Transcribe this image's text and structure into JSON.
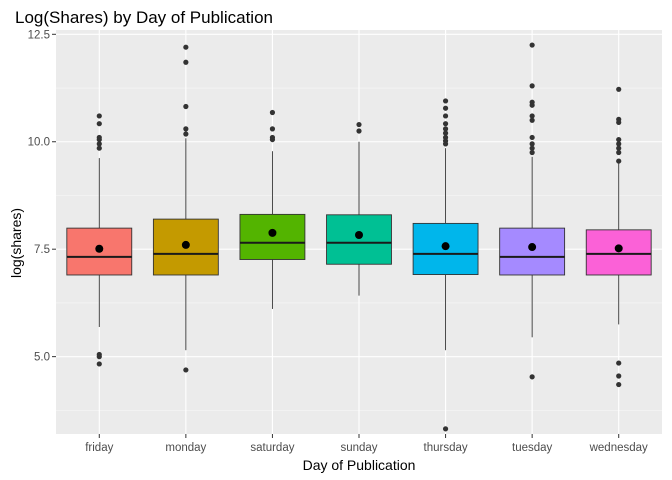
{
  "chart_data": {
    "type": "boxplot",
    "title": "Log(Shares) by Day of Publication",
    "xlabel": "Day of Publication",
    "ylabel": "log(shares)",
    "ylim": [
      3.2,
      12.6
    ],
    "yticks": [
      5.0,
      7.5,
      10.0,
      12.5
    ],
    "ytick_labels": [
      "5.0",
      "7.5",
      "10.0",
      "12.5"
    ],
    "grid": true,
    "legend": "none",
    "panel_background": "#ebebeb",
    "categories": [
      "friday",
      "monday",
      "saturday",
      "sunday",
      "thursday",
      "tuesday",
      "wednesday"
    ],
    "series": [
      {
        "category": "friday",
        "fill": "#f8766d",
        "q1": 6.9,
        "median": 7.32,
        "q3": 7.99,
        "whisker_low": 5.69,
        "whisker_high": 9.62,
        "mean": 7.51,
        "outliers": [
          10.6,
          10.42,
          10.1,
          10.05,
          9.95,
          9.85,
          5.05,
          5.0,
          4.83
        ]
      },
      {
        "category": "monday",
        "fill": "#c49a00",
        "q1": 6.9,
        "median": 7.39,
        "q3": 8.2,
        "whisker_low": 5.15,
        "whisker_high": 10.08,
        "mean": 7.6,
        "outliers": [
          12.2,
          11.85,
          10.82,
          10.3,
          10.18,
          4.69
        ]
      },
      {
        "category": "saturday",
        "fill": "#53b400",
        "q1": 7.26,
        "median": 7.65,
        "q3": 8.31,
        "whisker_low": 6.11,
        "whisker_high": 9.78,
        "mean": 7.88,
        "outliers": [
          10.68,
          10.3,
          10.1,
          10.05
        ]
      },
      {
        "category": "sunday",
        "fill": "#00c094",
        "q1": 7.15,
        "median": 7.65,
        "q3": 8.3,
        "whisker_low": 6.42,
        "whisker_high": 10.0,
        "mean": 7.83,
        "outliers": [
          10.4,
          10.25
        ]
      },
      {
        "category": "thursday",
        "fill": "#00b6eb",
        "q1": 6.91,
        "median": 7.39,
        "q3": 8.1,
        "whisker_low": 5.15,
        "whisker_high": 9.85,
        "mean": 7.57,
        "outliers": [
          10.95,
          10.78,
          10.6,
          10.42,
          10.3,
          10.2,
          10.1,
          10.02,
          9.95,
          3.32
        ]
      },
      {
        "category": "tuesday",
        "fill": "#a58aff",
        "q1": 6.9,
        "median": 7.32,
        "q3": 7.99,
        "whisker_low": 5.45,
        "whisker_high": 9.65,
        "mean": 7.55,
        "outliers": [
          12.25,
          11.3,
          10.92,
          10.85,
          10.6,
          10.5,
          10.1,
          9.95,
          9.85,
          9.75,
          4.53
        ]
      },
      {
        "category": "wednesday",
        "fill": "#fb61d7",
        "q1": 6.9,
        "median": 7.39,
        "q3": 7.95,
        "whisker_low": 5.75,
        "whisker_high": 9.5,
        "mean": 7.52,
        "outliers": [
          11.22,
          10.52,
          10.45,
          10.05,
          9.95,
          9.85,
          9.75,
          9.55,
          4.85,
          4.55,
          4.35
        ]
      }
    ]
  }
}
